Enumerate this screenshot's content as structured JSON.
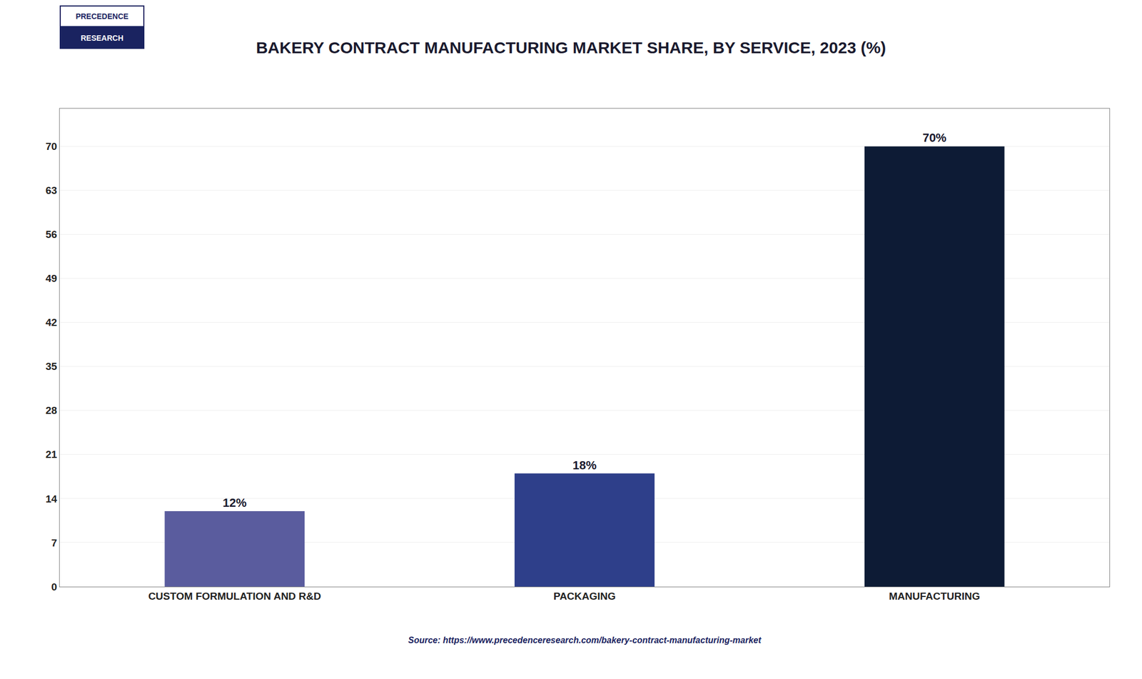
{
  "chart_data": {
    "type": "bar",
    "title": "BAKERY CONTRACT MANUFACTURING MARKET SHARE, BY SERVICE, 2023 (%)",
    "categories": [
      "CUSTOM FORMULATION AND R&D",
      "PACKAGING",
      "MANUFACTURING"
    ],
    "values": [
      12,
      18,
      70
    ],
    "value_labels": [
      "12%",
      "18%",
      "70%"
    ],
    "data_labels": true,
    "colors": [
      "#5a5c9e",
      "#2e3f8a",
      "#0d1b35"
    ],
    "ylim": [
      0,
      76
    ],
    "yticks": [
      0,
      7,
      14,
      21,
      28,
      35,
      42,
      49,
      56,
      63,
      70
    ],
    "grid": true,
    "annotations": [
      "Source: https://www.precedenceresearch.com/bakery-contract-manufacturing-market",
      "PRECEDENCE",
      "RESEARCH"
    ]
  }
}
